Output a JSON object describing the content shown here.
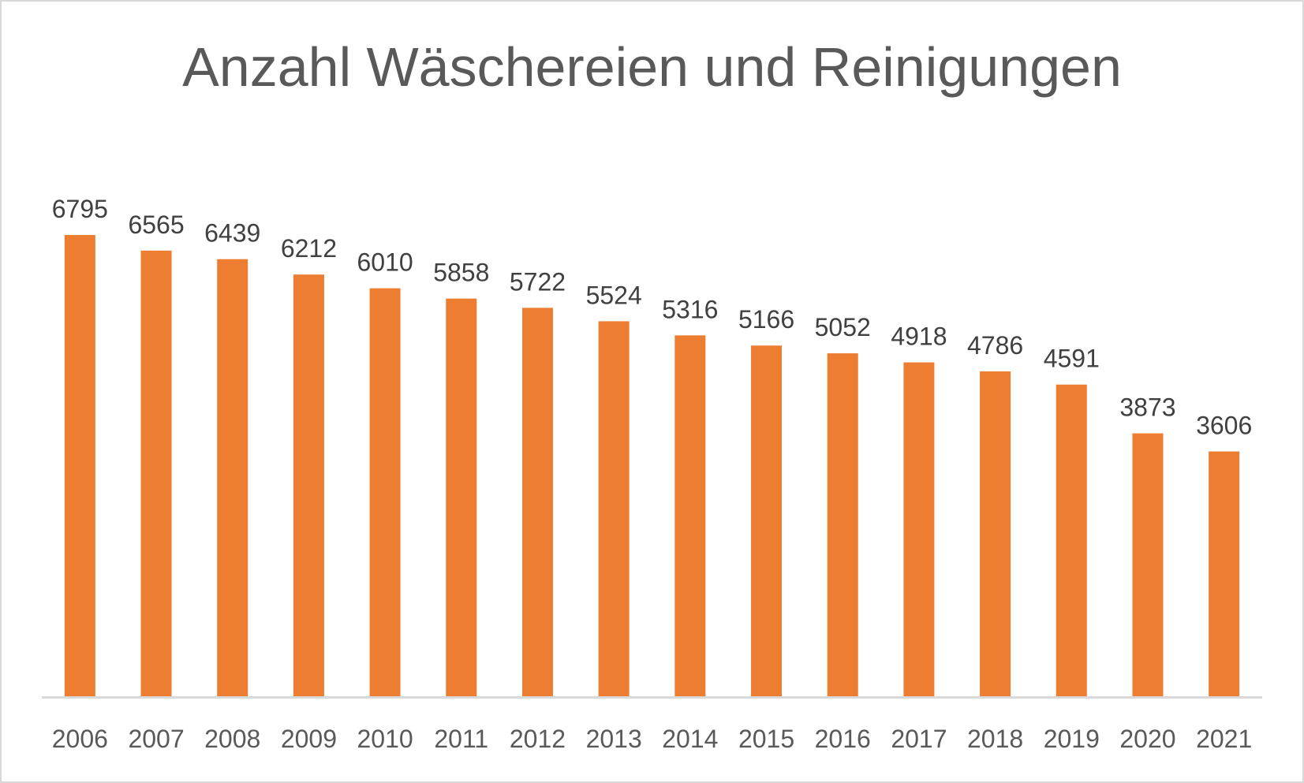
{
  "chart_data": {
    "type": "bar",
    "title": "Anzahl Wäschereien und Reinigungen",
    "xlabel": "",
    "ylabel": "",
    "categories": [
      "2006",
      "2007",
      "2008",
      "2009",
      "2010",
      "2011",
      "2012",
      "2013",
      "2014",
      "2015",
      "2016",
      "2017",
      "2018",
      "2019",
      "2020",
      "2021"
    ],
    "values": [
      6795,
      6565,
      6439,
      6212,
      6010,
      5858,
      5722,
      5524,
      5316,
      5166,
      5052,
      4918,
      4786,
      4591,
      3873,
      3606
    ],
    "ylim": [
      0,
      6795
    ],
    "grid": false,
    "legend": "none",
    "data_labels": true,
    "bar_color": "#ED7D31",
    "axis_color": "#D9D9D9"
  }
}
